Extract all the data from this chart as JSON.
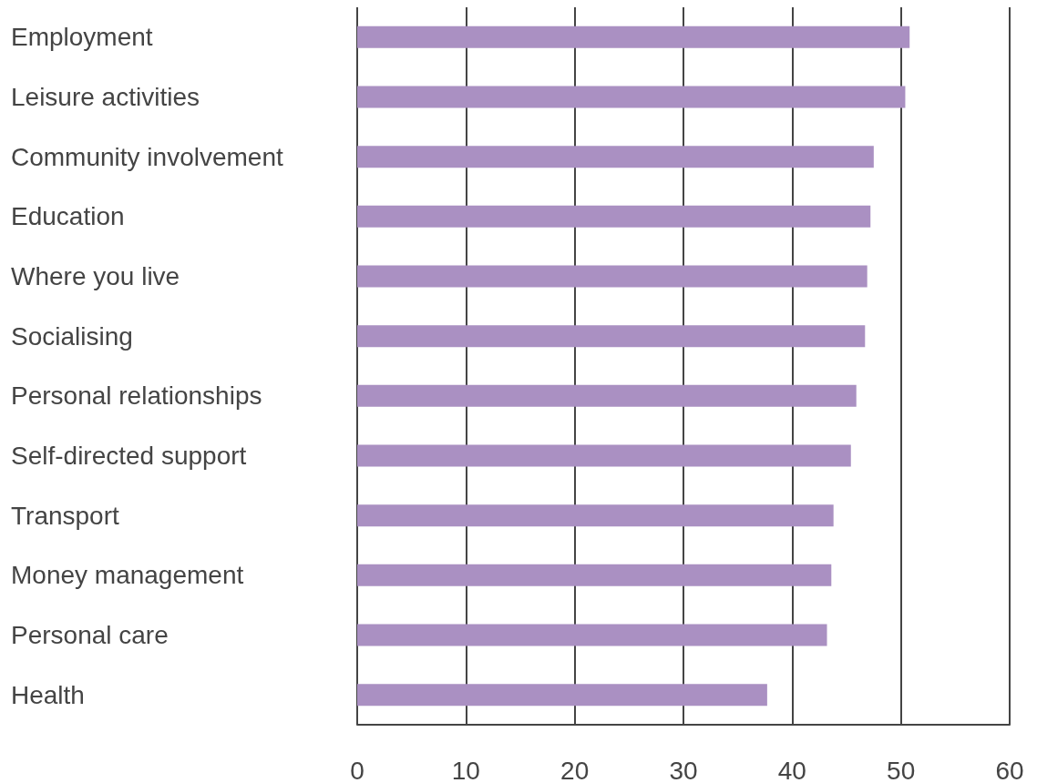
{
  "chart_data": {
    "type": "bar",
    "orientation": "horizontal",
    "categories": [
      "Employment",
      "Leisure activities",
      "Community involvement",
      "Education",
      "Where you live",
      "Socialising",
      "Personal relationships",
      "Self-directed support",
      "Transport",
      "Money management",
      "Personal care",
      "Health"
    ],
    "values": [
      50.8,
      50.4,
      47.5,
      47.2,
      46.9,
      46.7,
      45.9,
      45.4,
      43.8,
      43.6,
      43.2,
      37.7
    ],
    "color": "#aa90c2",
    "xlim": [
      0,
      60
    ],
    "xticks": [
      0,
      10,
      20,
      30,
      40,
      50,
      60
    ],
    "grid": "x"
  }
}
